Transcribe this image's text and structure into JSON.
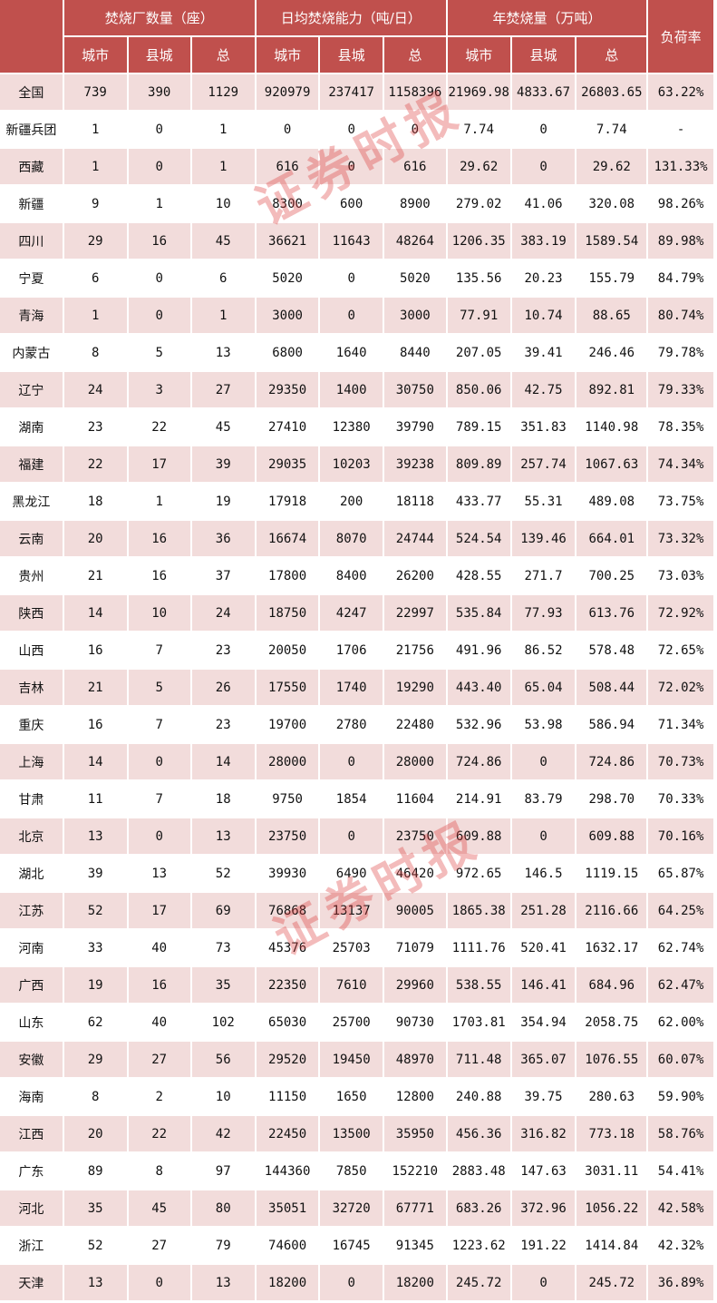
{
  "header": {
    "groups": [
      "焚烧厂数量（座）",
      "日均焚烧能力（吨/日）",
      "年焚烧量（万吨）"
    ],
    "load_rate": "负荷率",
    "sub": [
      "城市",
      "县城",
      "总",
      "城市",
      "县城",
      "总",
      "城市",
      "县城",
      "总"
    ]
  },
  "watermark": "证券时报",
  "colors": {
    "header": "#c0504d",
    "stripe": "#f2dcdb"
  },
  "rows": [
    [
      "全国",
      "739",
      "390",
      "1129",
      "920979",
      "237417",
      "1158396",
      "21969.98",
      "4833.67",
      "26803.65",
      "63.22%"
    ],
    [
      "新疆兵团",
      "1",
      "0",
      "1",
      "0",
      "0",
      "0",
      "7.74",
      "0",
      "7.74",
      "-"
    ],
    [
      "西藏",
      "1",
      "0",
      "1",
      "616",
      "0",
      "616",
      "29.62",
      "0",
      "29.62",
      "131.33%"
    ],
    [
      "新疆",
      "9",
      "1",
      "10",
      "8300",
      "600",
      "8900",
      "279.02",
      "41.06",
      "320.08",
      "98.26%"
    ],
    [
      "四川",
      "29",
      "16",
      "45",
      "36621",
      "11643",
      "48264",
      "1206.35",
      "383.19",
      "1589.54",
      "89.98%"
    ],
    [
      "宁夏",
      "6",
      "0",
      "6",
      "5020",
      "0",
      "5020",
      "135.56",
      "20.23",
      "155.79",
      "84.79%"
    ],
    [
      "青海",
      "1",
      "0",
      "1",
      "3000",
      "0",
      "3000",
      "77.91",
      "10.74",
      "88.65",
      "80.74%"
    ],
    [
      "内蒙古",
      "8",
      "5",
      "13",
      "6800",
      "1640",
      "8440",
      "207.05",
      "39.41",
      "246.46",
      "79.78%"
    ],
    [
      "辽宁",
      "24",
      "3",
      "27",
      "29350",
      "1400",
      "30750",
      "850.06",
      "42.75",
      "892.81",
      "79.33%"
    ],
    [
      "湖南",
      "23",
      "22",
      "45",
      "27410",
      "12380",
      "39790",
      "789.15",
      "351.83",
      "1140.98",
      "78.35%"
    ],
    [
      "福建",
      "22",
      "17",
      "39",
      "29035",
      "10203",
      "39238",
      "809.89",
      "257.74",
      "1067.63",
      "74.34%"
    ],
    [
      "黑龙江",
      "18",
      "1",
      "19",
      "17918",
      "200",
      "18118",
      "433.77",
      "55.31",
      "489.08",
      "73.75%"
    ],
    [
      "云南",
      "20",
      "16",
      "36",
      "16674",
      "8070",
      "24744",
      "524.54",
      "139.46",
      "664.01",
      "73.32%"
    ],
    [
      "贵州",
      "21",
      "16",
      "37",
      "17800",
      "8400",
      "26200",
      "428.55",
      "271.7",
      "700.25",
      "73.03%"
    ],
    [
      "陕西",
      "14",
      "10",
      "24",
      "18750",
      "4247",
      "22997",
      "535.84",
      "77.93",
      "613.76",
      "72.92%"
    ],
    [
      "山西",
      "16",
      "7",
      "23",
      "20050",
      "1706",
      "21756",
      "491.96",
      "86.52",
      "578.48",
      "72.65%"
    ],
    [
      "吉林",
      "21",
      "5",
      "26",
      "17550",
      "1740",
      "19290",
      "443.40",
      "65.04",
      "508.44",
      "72.02%"
    ],
    [
      "重庆",
      "16",
      "7",
      "23",
      "19700",
      "2780",
      "22480",
      "532.96",
      "53.98",
      "586.94",
      "71.34%"
    ],
    [
      "上海",
      "14",
      "0",
      "14",
      "28000",
      "0",
      "28000",
      "724.86",
      "0",
      "724.86",
      "70.73%"
    ],
    [
      "甘肃",
      "11",
      "7",
      "18",
      "9750",
      "1854",
      "11604",
      "214.91",
      "83.79",
      "298.70",
      "70.33%"
    ],
    [
      "北京",
      "13",
      "0",
      "13",
      "23750",
      "0",
      "23750",
      "609.88",
      "0",
      "609.88",
      "70.16%"
    ],
    [
      "湖北",
      "39",
      "13",
      "52",
      "39930",
      "6490",
      "46420",
      "972.65",
      "146.5",
      "1119.15",
      "65.87%"
    ],
    [
      "江苏",
      "52",
      "17",
      "69",
      "76868",
      "13137",
      "90005",
      "1865.38",
      "251.28",
      "2116.66",
      "64.25%"
    ],
    [
      "河南",
      "33",
      "40",
      "73",
      "45376",
      "25703",
      "71079",
      "1111.76",
      "520.41",
      "1632.17",
      "62.74%"
    ],
    [
      "广西",
      "19",
      "16",
      "35",
      "22350",
      "7610",
      "29960",
      "538.55",
      "146.41",
      "684.96",
      "62.47%"
    ],
    [
      "山东",
      "62",
      "40",
      "102",
      "65030",
      "25700",
      "90730",
      "1703.81",
      "354.94",
      "2058.75",
      "62.00%"
    ],
    [
      "安徽",
      "29",
      "27",
      "56",
      "29520",
      "19450",
      "48970",
      "711.48",
      "365.07",
      "1076.55",
      "60.07%"
    ],
    [
      "海南",
      "8",
      "2",
      "10",
      "11150",
      "1650",
      "12800",
      "240.88",
      "39.75",
      "280.63",
      "59.90%"
    ],
    [
      "江西",
      "20",
      "22",
      "42",
      "22450",
      "13500",
      "35950",
      "456.36",
      "316.82",
      "773.18",
      "58.76%"
    ],
    [
      "广东",
      "89",
      "8",
      "97",
      "144360",
      "7850",
      "152210",
      "2883.48",
      "147.63",
      "3031.11",
      "54.41%"
    ],
    [
      "河北",
      "35",
      "45",
      "80",
      "35051",
      "32720",
      "67771",
      "683.26",
      "372.96",
      "1056.22",
      "42.58%"
    ],
    [
      "浙江",
      "52",
      "27",
      "79",
      "74600",
      "16745",
      "91345",
      "1223.62",
      "191.22",
      "1414.84",
      "42.32%"
    ],
    [
      "天津",
      "13",
      "0",
      "13",
      "18200",
      "0",
      "18200",
      "245.72",
      "0",
      "245.72",
      "36.89%"
    ]
  ]
}
